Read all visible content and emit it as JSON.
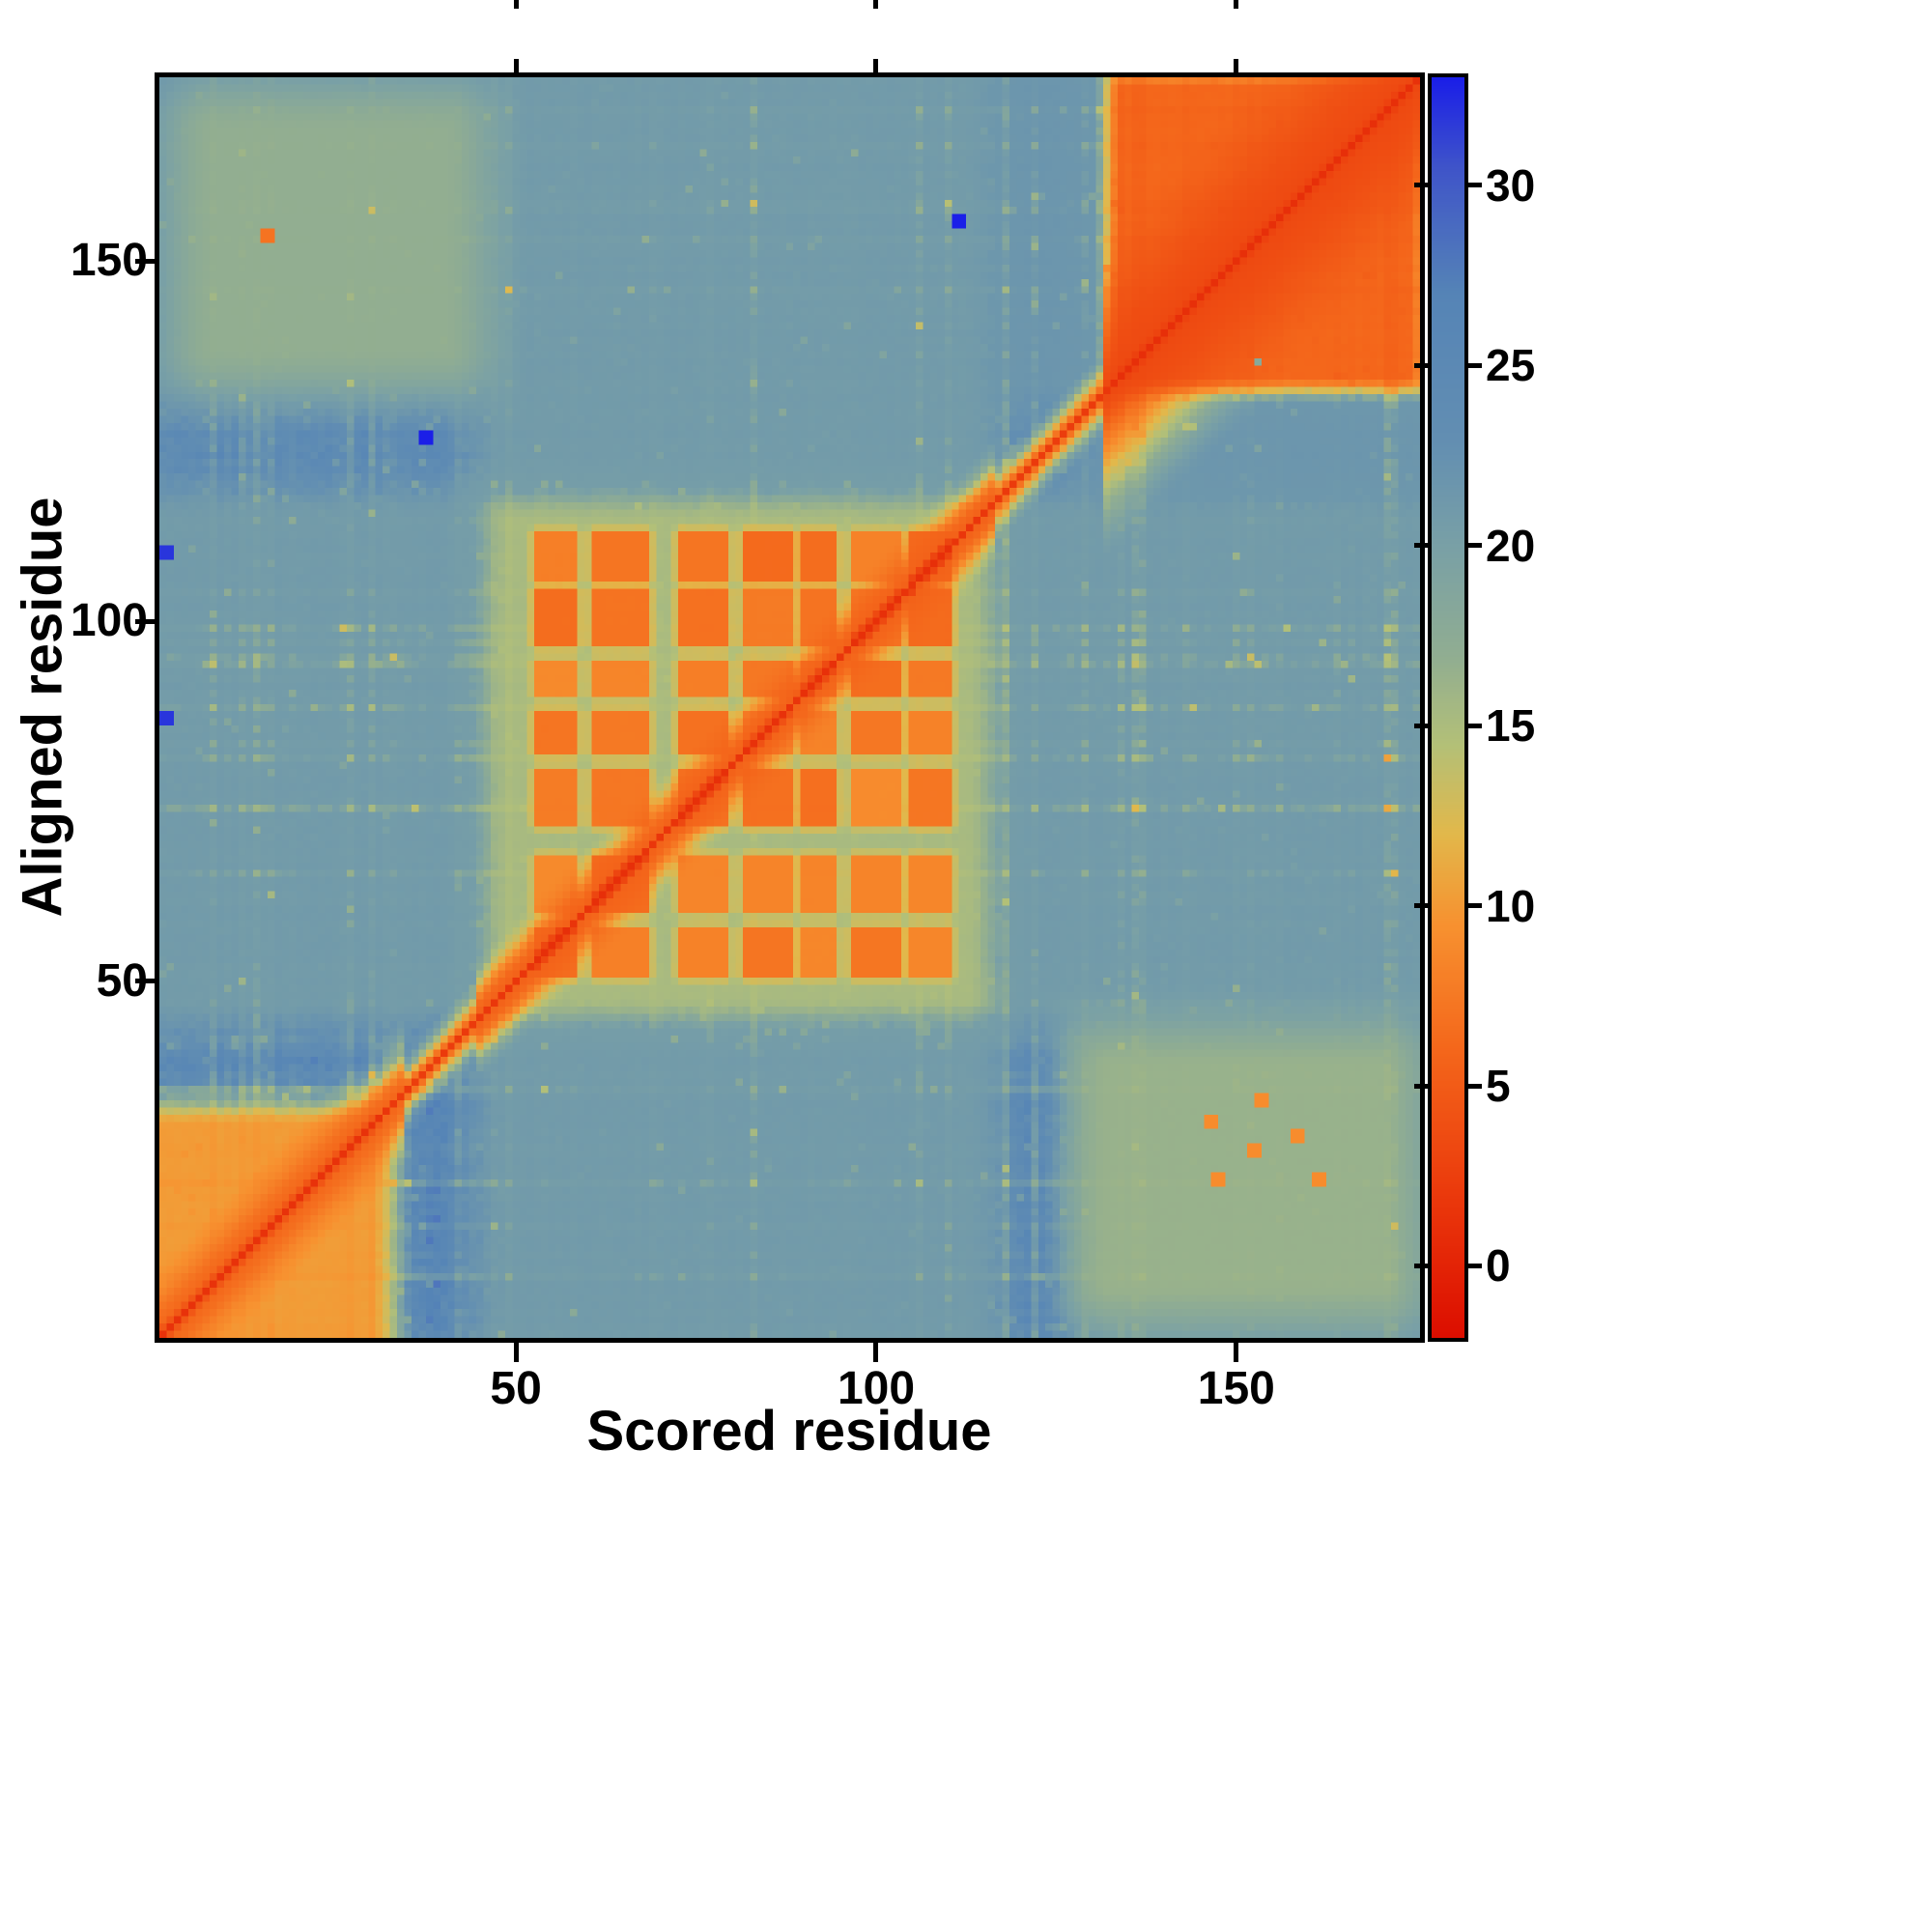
{
  "chart_data": {
    "type": "heatmap",
    "title": "",
    "xlabel": "Scored residue",
    "ylabel": "Aligned residue",
    "x_range": [
      1,
      175
    ],
    "y_range": [
      1,
      175
    ],
    "x_ticks": [
      50,
      100,
      150
    ],
    "y_ticks": [
      50,
      100,
      150
    ],
    "grid": false,
    "legend_position": "none",
    "colorbar": {
      "position": "right",
      "tick_values": [
        0,
        5,
        10,
        15,
        20,
        25,
        30
      ],
      "vmin": -2,
      "vmax": 33,
      "stops": [
        [
          -2,
          "#dc0e00"
        ],
        [
          2,
          "#eb3a0c"
        ],
        [
          6,
          "#f4671b"
        ],
        [
          9.5,
          "#f79230"
        ],
        [
          12,
          "#e2b84b"
        ],
        [
          14.5,
          "#b3c078"
        ],
        [
          17,
          "#90ad92"
        ],
        [
          20,
          "#79a0a6"
        ],
        [
          23,
          "#628eb2"
        ],
        [
          27,
          "#5584b6"
        ],
        [
          30.5,
          "#3f55c9"
        ],
        [
          33,
          "#1b1fe8"
        ]
      ]
    },
    "heatmap": {
      "n": 175,
      "background_value": 25.5,
      "noise": {
        "seed": 20177,
        "row_amp": 1.2,
        "col_amp": 1.2,
        "cell_amp": 1.3,
        "streak_prob": 0.18,
        "streak_drop": 5,
        "speckle_prob": 0.05,
        "speckle_drop": 6
      },
      "diag_bands": [
        {
          "range": [
            1,
            175
          ],
          "width": 2.4,
          "value": 0.6
        },
        {
          "range": [
            1,
            175
          ],
          "width": 6,
          "value": 6.5
        },
        {
          "range": [
            1,
            34
          ],
          "width": 11,
          "value": 6
        },
        {
          "range": [
            45,
            116
          ],
          "width": 9,
          "value": 5.5
        },
        {
          "range": [
            132,
            175
          ],
          "width": 24,
          "value": 3.2
        }
      ],
      "regions": [
        {
          "x": [
            1,
            30
          ],
          "y": [
            1,
            30
          ],
          "value": 9,
          "feather": 7
        },
        {
          "x": [
            134,
            174
          ],
          "y": [
            134,
            174
          ],
          "value": 4.5,
          "feather": 5
        },
        {
          "x": [
            49,
            113
          ],
          "y": [
            48,
            114
          ],
          "value": 14.5,
          "feather": 9
        },
        {
          "x": [
            49,
            113
          ],
          "y": [
            1,
            175
          ],
          "value": 20.5,
          "feather": 12
        },
        {
          "x": [
            1,
            175
          ],
          "y": [
            48,
            114
          ],
          "value": 20.5,
          "feather": 12
        },
        {
          "x": [
            134,
            175
          ],
          "y": [
            1,
            175
          ],
          "value": 21.5,
          "feather": 14
        },
        {
          "x": [
            1,
            175
          ],
          "y": [
            134,
            175
          ],
          "value": 21.5,
          "feather": 14
        },
        {
          "x": [
            8,
            40
          ],
          "y": [
            138,
            168
          ],
          "value": 16.5,
          "feather": 12
        },
        {
          "x": [
            132,
            170
          ],
          "y": [
            8,
            38
          ],
          "value": 16,
          "feather": 12
        }
      ],
      "cluster_blocks": {
        "x_stripes": [
          [
            53,
            58
          ],
          [
            61,
            68
          ],
          [
            73,
            79
          ],
          [
            82,
            88
          ],
          [
            90,
            94
          ],
          [
            97,
            103
          ],
          [
            105,
            110
          ]
        ],
        "y_stripes": [
          [
            51,
            57
          ],
          [
            60,
            67
          ],
          [
            72,
            79
          ],
          [
            82,
            87
          ],
          [
            90,
            94
          ],
          [
            97,
            104
          ],
          [
            106,
            112
          ]
        ],
        "value": 7,
        "feather": 1.5,
        "jitter": 1.5
      },
      "dots": [
        {
          "x": 111,
          "y": 155,
          "value": 33,
          "size": 2
        },
        {
          "x": 37,
          "y": 125,
          "value": 33,
          "size": 2
        },
        {
          "x": 1,
          "y": 109,
          "value": 32,
          "size": 2
        },
        {
          "x": 1,
          "y": 86,
          "value": 32,
          "size": 2
        },
        {
          "x": 15,
          "y": 153,
          "value": 7,
          "size": 2
        },
        {
          "x": 153,
          "y": 136,
          "value": 18,
          "size": 1
        },
        {
          "x": 146,
          "y": 30,
          "value": 9,
          "size": 2
        },
        {
          "x": 152,
          "y": 26,
          "value": 9,
          "size": 2
        },
        {
          "x": 147,
          "y": 22,
          "value": 9,
          "size": 2
        },
        {
          "x": 158,
          "y": 28,
          "value": 9,
          "size": 2
        },
        {
          "x": 153,
          "y": 33,
          "value": 9,
          "size": 2
        },
        {
          "x": 161,
          "y": 22,
          "value": 9,
          "size": 2
        }
      ]
    }
  }
}
